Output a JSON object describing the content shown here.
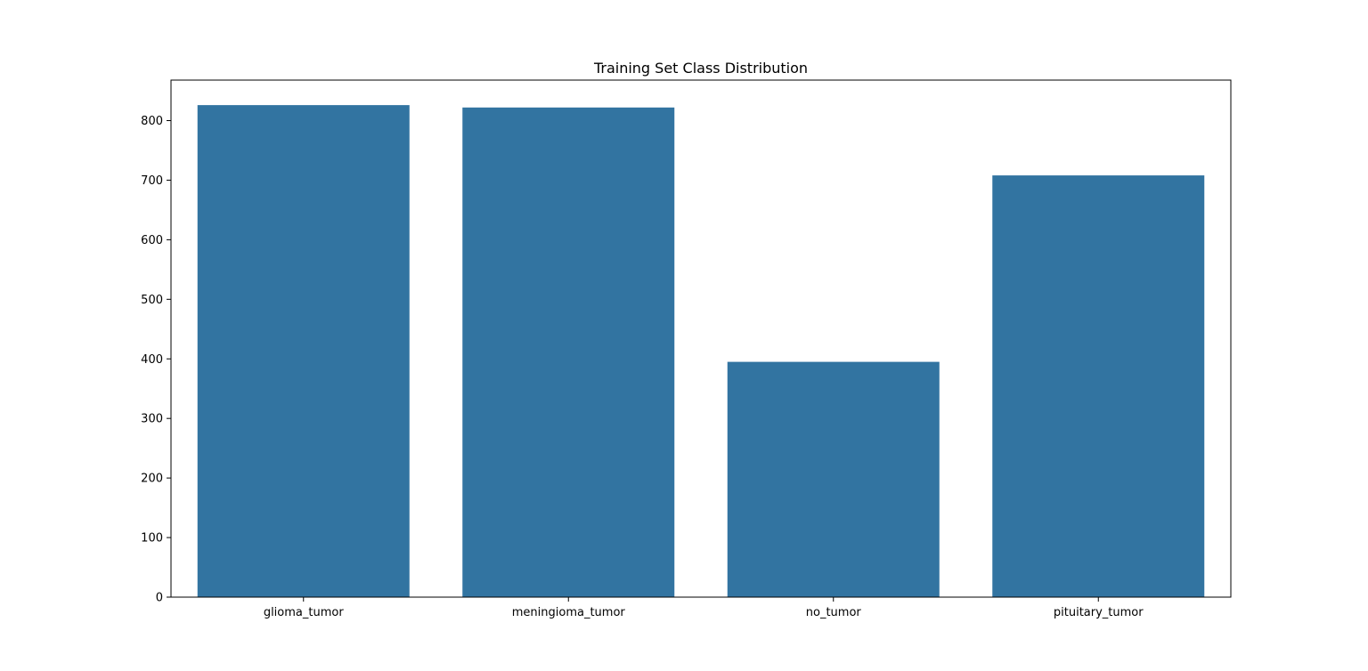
{
  "chart_data": {
    "type": "bar",
    "title": "Training Set Class Distribution",
    "xlabel": "",
    "ylabel": "",
    "categories": [
      "glioma_tumor",
      "meningioma_tumor",
      "no_tumor",
      "pituitary_tumor"
    ],
    "values": [
      826,
      822,
      395,
      708
    ],
    "ylim": [
      0,
      868
    ],
    "yticks": [
      0,
      100,
      200,
      300,
      400,
      500,
      600,
      700,
      800
    ],
    "grid": false,
    "legend": "none",
    "bar_color": "#3274a1"
  }
}
